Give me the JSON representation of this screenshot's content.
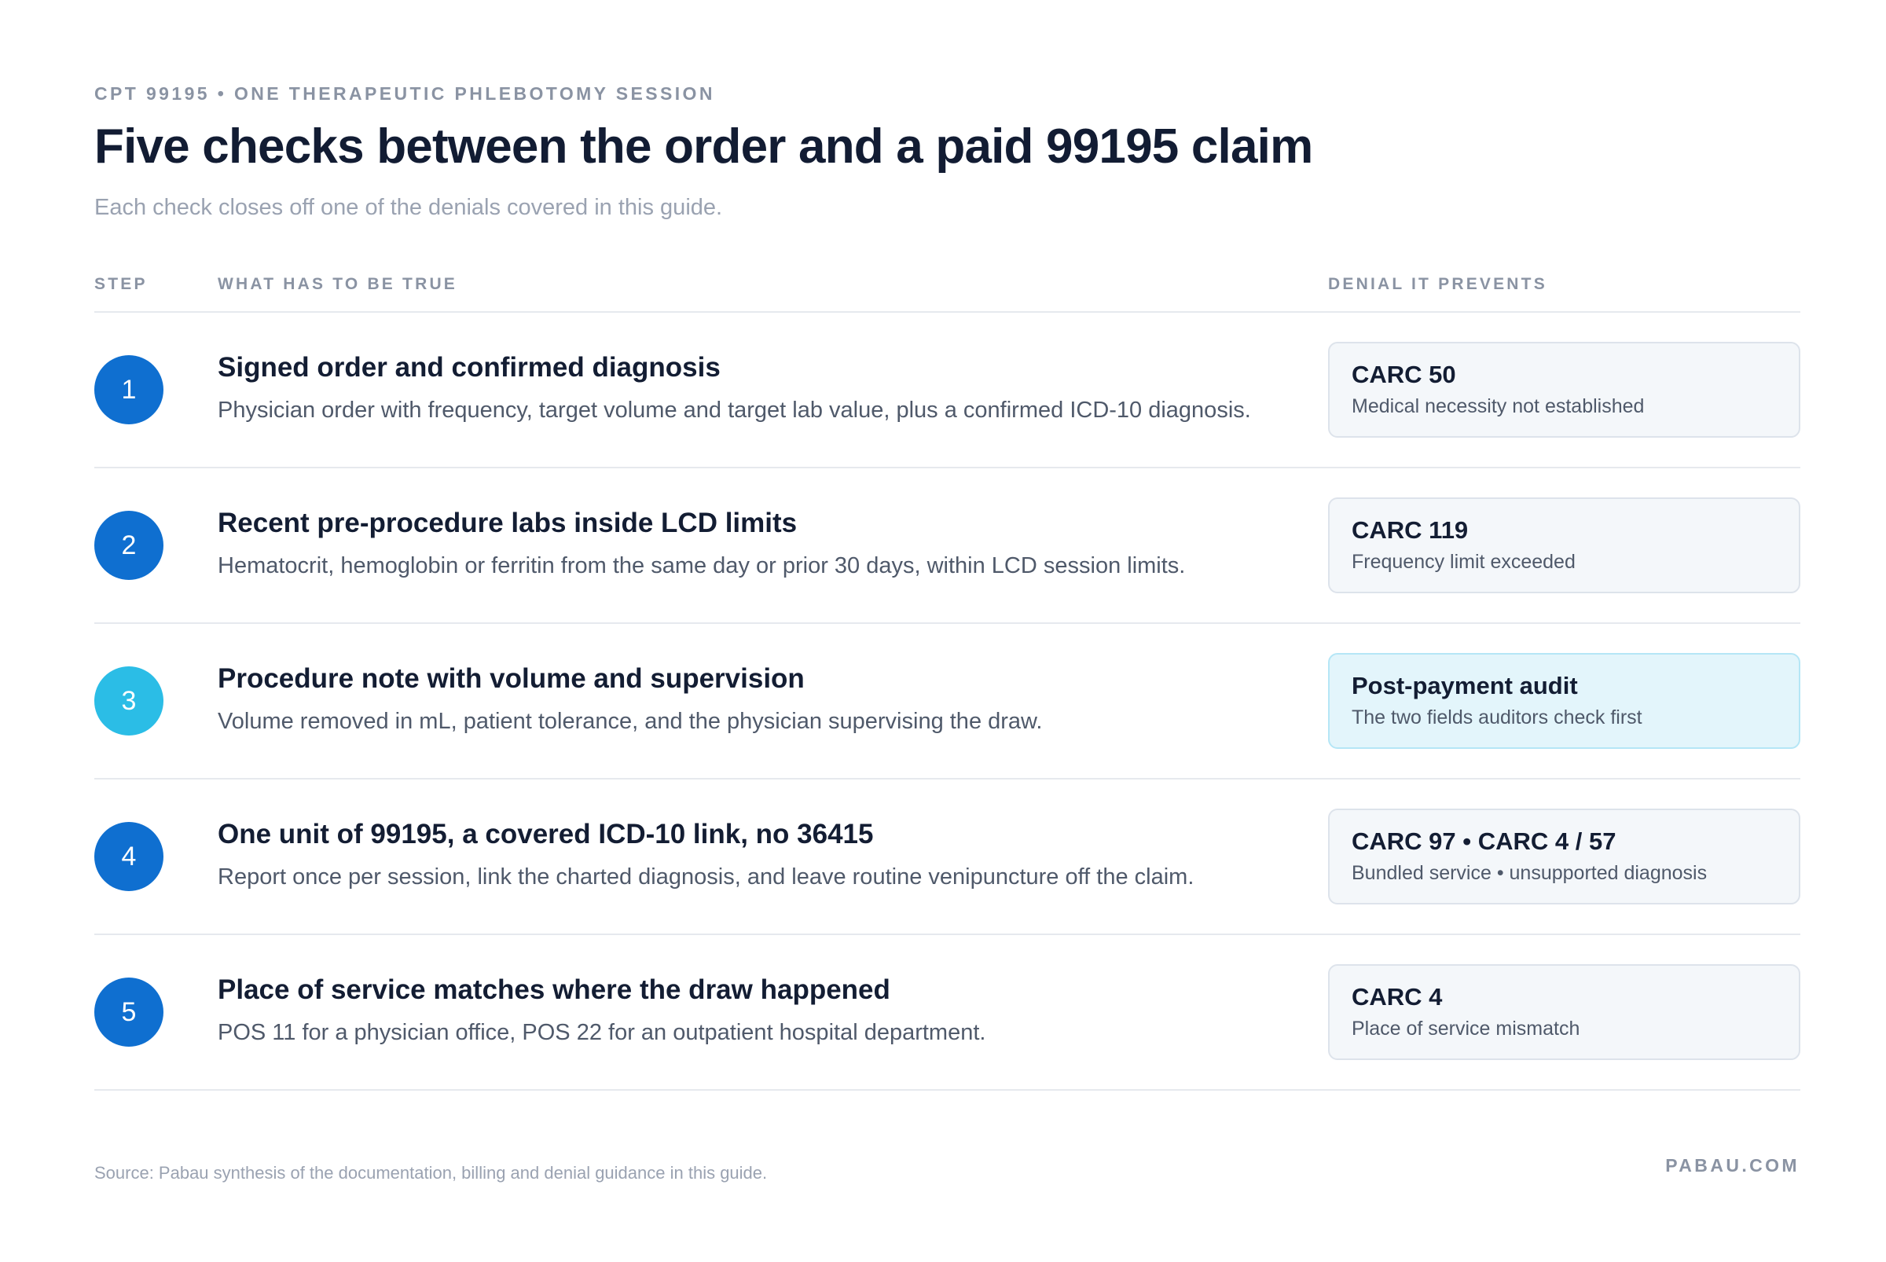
{
  "header": {
    "eyebrow": "CPT 99195 • ONE THERAPEUTIC PHLEBOTOMY SESSION",
    "title": "Five checks between the order and a paid 99195 claim",
    "subtitle": "Each check closes off one of the denials covered in this guide."
  },
  "columns": {
    "step": "STEP",
    "what": "WHAT HAS TO BE TRUE",
    "denial": "DENIAL IT PREVENTS"
  },
  "rows": [
    {
      "step": "1",
      "title": "Signed order and confirmed diagnosis",
      "description": "Physician order with frequency, target volume and target lab value, plus a confirmed ICD-10 diagnosis.",
      "denial_code": "CARC 50",
      "denial_desc": "Medical necessity not established"
    },
    {
      "step": "2",
      "title": "Recent pre-procedure labs inside LCD limits",
      "description": "Hematocrit, hemoglobin or ferritin from the same day or prior 30 days, within LCD session limits.",
      "denial_code": "CARC 119",
      "denial_desc": "Frequency limit exceeded"
    },
    {
      "step": "3",
      "title": "Procedure note with volume and supervision",
      "description": "Volume removed in mL, patient tolerance, and the physician supervising the draw.",
      "denial_code": "Post-payment audit",
      "denial_desc": "The two fields auditors check first"
    },
    {
      "step": "4",
      "title": "One unit of 99195, a covered ICD-10 link, no 36415",
      "description": "Report once per session, link the charted diagnosis, and leave routine venipuncture off the claim.",
      "denial_code": "CARC 97 • CARC 4 / 57",
      "denial_desc": "Bundled service • unsupported diagnosis"
    },
    {
      "step": "5",
      "title": "Place of service matches where the draw happened",
      "description": "POS 11 for a physician office, POS 22 for an outpatient hospital department.",
      "denial_code": "CARC 4",
      "denial_desc": "Place of service mismatch"
    }
  ],
  "footer": {
    "source": "Source: Pabau synthesis of the documentation, billing and denial guidance in this guide.",
    "brand": "PABAU.COM"
  },
  "colors": {
    "badge_primary": "#0f6fd0",
    "badge_highlight": "#2bbde6",
    "card_bg": "#f4f7fa",
    "card_highlight_bg": "#e3f5fb"
  }
}
